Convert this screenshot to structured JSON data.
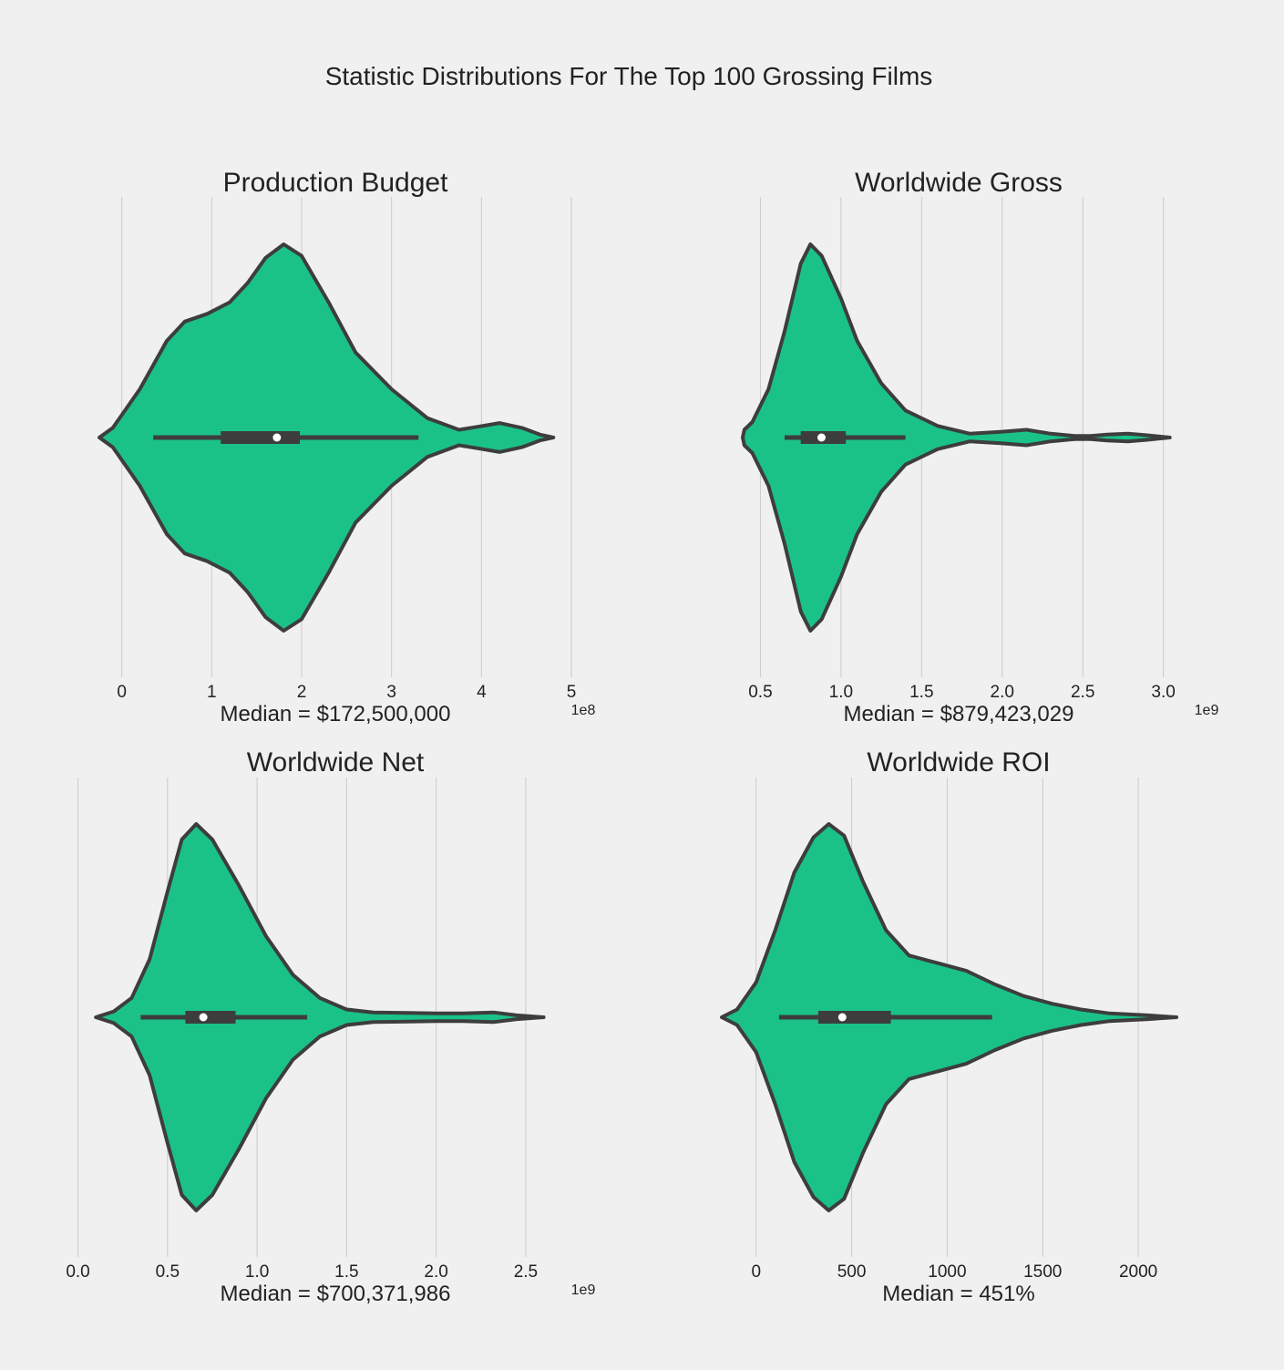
{
  "colors": {
    "background": "#f0f0f0",
    "violin_fill": "#1bc287",
    "violin_edge": "#3d3d3d",
    "grid": "#cbcbcb",
    "median_dot": "#ffffff"
  },
  "figure": {
    "title": "Statistic Distributions For The Top 100 Grossing Films"
  },
  "chart_data": [
    {
      "type": "violin",
      "title": "Production Budget",
      "xlabel": "Median = $172,500,000",
      "offset_text": "1e8",
      "orientation": "horizontal",
      "grid": true,
      "xlim": [
        -0.26,
        5.02
      ],
      "ticks": [
        0,
        1,
        2,
        3,
        4,
        5
      ],
      "tick_labels": [
        "0",
        "1",
        "2",
        "3",
        "4",
        "5"
      ],
      "density": [
        [
          -0.25,
          0.0
        ],
        [
          -0.1,
          0.05
        ],
        [
          0.2,
          0.25
        ],
        [
          0.5,
          0.5
        ],
        [
          0.7,
          0.6
        ],
        [
          0.95,
          0.64
        ],
        [
          1.2,
          0.7
        ],
        [
          1.4,
          0.8
        ],
        [
          1.6,
          0.93
        ],
        [
          1.8,
          1.0
        ],
        [
          2.0,
          0.94
        ],
        [
          2.3,
          0.7
        ],
        [
          2.6,
          0.44
        ],
        [
          3.0,
          0.25
        ],
        [
          3.4,
          0.1
        ],
        [
          3.75,
          0.04
        ],
        [
          3.95,
          0.055
        ],
        [
          4.2,
          0.075
        ],
        [
          4.45,
          0.05
        ],
        [
          4.65,
          0.015
        ],
        [
          4.8,
          0.0
        ]
      ],
      "box": {
        "whisker_low": 0.35,
        "q1": 1.1,
        "median": 1.725,
        "q3": 1.98,
        "whisker_high": 3.3
      }
    },
    {
      "type": "violin",
      "title": "Worldwide Gross",
      "xlabel": "Median = $879,423,029",
      "offset_text": "1e9",
      "orientation": "horizontal",
      "grid": true,
      "xlim": [
        0.26,
        3.2
      ],
      "ticks": [
        0.5,
        1.0,
        1.5,
        2.0,
        2.5,
        3.0
      ],
      "tick_labels": [
        "0.5",
        "1.0",
        "1.5",
        "2.0",
        "2.5",
        "3.0"
      ],
      "density": [
        [
          0.39,
          0.0
        ],
        [
          0.4,
          0.04
        ],
        [
          0.45,
          0.08
        ],
        [
          0.55,
          0.25
        ],
        [
          0.65,
          0.55
        ],
        [
          0.75,
          0.9
        ],
        [
          0.81,
          1.0
        ],
        [
          0.88,
          0.94
        ],
        [
          1.0,
          0.72
        ],
        [
          1.1,
          0.5
        ],
        [
          1.25,
          0.28
        ],
        [
          1.4,
          0.14
        ],
        [
          1.6,
          0.06
        ],
        [
          1.8,
          0.02
        ],
        [
          2.0,
          0.03
        ],
        [
          2.15,
          0.04
        ],
        [
          2.3,
          0.02
        ],
        [
          2.45,
          0.008
        ],
        [
          2.55,
          0.008
        ],
        [
          2.65,
          0.015
        ],
        [
          2.78,
          0.02
        ],
        [
          2.9,
          0.012
        ],
        [
          3.04,
          0.0
        ]
      ],
      "box": {
        "whisker_low": 0.65,
        "q1": 0.75,
        "median": 0.879,
        "q3": 1.03,
        "whisker_high": 1.4
      }
    },
    {
      "type": "violin",
      "title": "Worldwide Net",
      "xlabel": "Median = $700,371,986",
      "offset_text": "1e9",
      "orientation": "horizontal",
      "grid": true,
      "xlim": [
        -0.13,
        2.76
      ],
      "ticks": [
        0.0,
        0.5,
        1.0,
        1.5,
        2.0,
        2.5
      ],
      "tick_labels": [
        "0.0",
        "0.5",
        "1.0",
        "1.5",
        "2.0",
        "2.5"
      ],
      "density": [
        [
          0.1,
          0.0
        ],
        [
          0.2,
          0.03
        ],
        [
          0.3,
          0.1
        ],
        [
          0.4,
          0.3
        ],
        [
          0.5,
          0.65
        ],
        [
          0.58,
          0.92
        ],
        [
          0.66,
          1.0
        ],
        [
          0.75,
          0.92
        ],
        [
          0.9,
          0.68
        ],
        [
          1.05,
          0.42
        ],
        [
          1.2,
          0.22
        ],
        [
          1.35,
          0.1
        ],
        [
          1.5,
          0.04
        ],
        [
          1.65,
          0.025
        ],
        [
          1.85,
          0.022
        ],
        [
          2.0,
          0.02
        ],
        [
          2.15,
          0.02
        ],
        [
          2.32,
          0.025
        ],
        [
          2.45,
          0.01
        ],
        [
          2.6,
          0.0
        ]
      ],
      "box": {
        "whisker_low": 0.35,
        "q1": 0.6,
        "median": 0.7,
        "q3": 0.88,
        "whisker_high": 1.28
      }
    },
    {
      "type": "violin",
      "title": "Worldwide ROI",
      "xlabel": "Median = 451%",
      "orientation": "horizontal",
      "grid": true,
      "xlim": [
        -180,
        2300
      ],
      "ticks": [
        0,
        500,
        1000,
        1500,
        2000
      ],
      "tick_labels": [
        "0",
        "500",
        "1000",
        "1500",
        "2000"
      ],
      "density": [
        [
          -180,
          0.0
        ],
        [
          -100,
          0.04
        ],
        [
          0,
          0.18
        ],
        [
          100,
          0.45
        ],
        [
          200,
          0.75
        ],
        [
          300,
          0.93
        ],
        [
          380,
          1.0
        ],
        [
          460,
          0.94
        ],
        [
          560,
          0.7
        ],
        [
          680,
          0.45
        ],
        [
          800,
          0.32
        ],
        [
          950,
          0.28
        ],
        [
          1100,
          0.24
        ],
        [
          1250,
          0.17
        ],
        [
          1400,
          0.11
        ],
        [
          1550,
          0.07
        ],
        [
          1700,
          0.04
        ],
        [
          1850,
          0.02
        ],
        [
          2050,
          0.01
        ],
        [
          2200,
          0.0
        ]
      ],
      "box": {
        "whisker_low": 120,
        "q1": 325,
        "median": 451,
        "q3": 705,
        "whisker_high": 1235
      }
    }
  ]
}
